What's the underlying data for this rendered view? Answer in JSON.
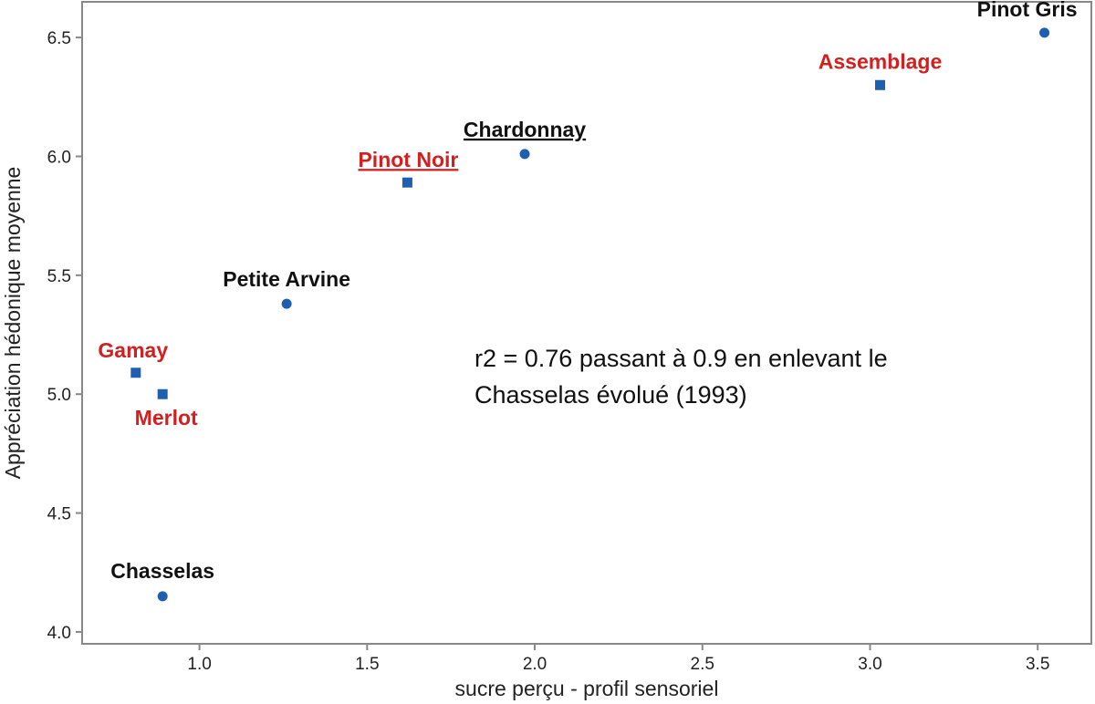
{
  "chart_data": {
    "type": "scatter",
    "title": "",
    "xlabel": "sucre perçu - profil sensoriel",
    "ylabel": "Appréciation hédonique moyenne",
    "xlim": [
      0.65,
      3.66
    ],
    "ylim": [
      3.95,
      6.65
    ],
    "xticks": [
      1.0,
      1.5,
      2.0,
      2.5,
      3.0,
      3.5
    ],
    "xtick_labels": [
      "1.0",
      "1.5",
      "2.0",
      "2.5",
      "3.0",
      "3.5"
    ],
    "yticks": [
      4.0,
      4.5,
      5.0,
      5.5,
      6.0,
      6.5
    ],
    "ytick_labels": [
      "4.0",
      "4.5",
      "5.0",
      "5.5",
      "6.0",
      "6.5"
    ],
    "grid": false,
    "colors": {
      "marker": "#1f5fb0",
      "label_white": "#111111",
      "label_red": "#d21f1f",
      "axis": "#888888"
    },
    "points": [
      {
        "name": "Chasselas",
        "x": 0.89,
        "y": 4.15,
        "marker": "circle",
        "wine": "white",
        "underline": false
      },
      {
        "name": "Gamay",
        "x": 0.81,
        "y": 5.09,
        "marker": "square",
        "wine": "red",
        "underline": false
      },
      {
        "name": "Merlot",
        "x": 0.89,
        "y": 5.0,
        "marker": "square",
        "wine": "red",
        "underline": false
      },
      {
        "name": "Petite Arvine",
        "x": 1.26,
        "y": 5.38,
        "marker": "circle",
        "wine": "white",
        "underline": false
      },
      {
        "name": "Pinot Noir",
        "x": 1.62,
        "y": 5.89,
        "marker": "square",
        "wine": "red",
        "underline": true
      },
      {
        "name": "Chardonnay",
        "x": 1.97,
        "y": 6.01,
        "marker": "circle",
        "wine": "white",
        "underline": true
      },
      {
        "name": "Assemblage",
        "x": 3.03,
        "y": 6.3,
        "marker": "square",
        "wine": "red",
        "underline": false
      },
      {
        "name": "Pinot Gris",
        "x": 3.52,
        "y": 6.52,
        "marker": "circle",
        "wine": "white",
        "underline": false
      }
    ],
    "annotation": [
      "r2 = 0.76 passant à 0.9 en enlevant le",
      "Chasselas évolué (1993)"
    ]
  }
}
